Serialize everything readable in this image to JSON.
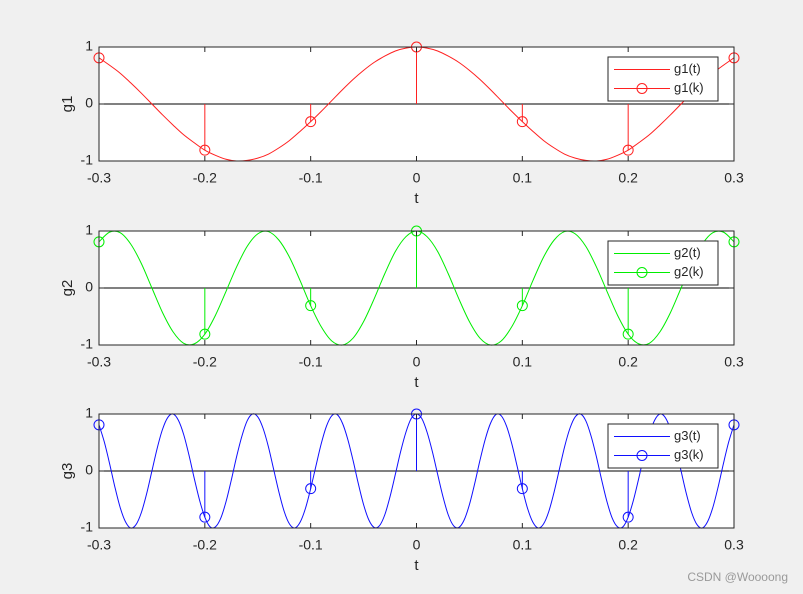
{
  "chart_data": [
    {
      "type": "line",
      "ylabel": "g1",
      "xlabel": "t",
      "xlim": [
        -0.3,
        0.3
      ],
      "ylim": [
        -1,
        1
      ],
      "xticks": [
        -0.3,
        -0.2,
        -0.1,
        0,
        0.1,
        0.2,
        0.3
      ],
      "yticks": [
        -1,
        0,
        1
      ],
      "legend": "northeast",
      "series": [
        {
          "name": "g1(t)",
          "type": "line",
          "color": "#ff2020",
          "x": [
            -0.3,
            -0.29,
            -0.28,
            -0.27,
            -0.26,
            -0.25,
            -0.24,
            -0.23,
            -0.22,
            -0.21,
            -0.2,
            -0.19,
            -0.18,
            -0.17,
            -0.16,
            -0.15,
            -0.14,
            -0.13,
            -0.12,
            -0.11,
            -0.1,
            -0.09,
            -0.08,
            -0.07,
            -0.06,
            -0.05,
            -0.04,
            -0.03,
            -0.02,
            -0.01,
            0,
            0.01,
            0.02,
            0.03,
            0.04,
            0.05,
            0.06,
            0.07,
            0.08,
            0.09,
            0.1,
            0.11,
            0.12,
            0.13,
            0.14,
            0.15,
            0.16,
            0.17,
            0.18,
            0.19,
            0.2,
            0.21,
            0.22,
            0.23,
            0.24,
            0.25,
            0.26,
            0.27,
            0.28,
            0.29,
            0.3
          ],
          "values": [
            0.81,
            0.68,
            0.54,
            0.37,
            0.19,
            0,
            -0.19,
            -0.37,
            -0.54,
            -0.68,
            -0.81,
            -0.9,
            -0.97,
            -1,
            -0.99,
            -0.95,
            -0.88,
            -0.77,
            -0.64,
            -0.48,
            -0.31,
            -0.13,
            0.06,
            0.25,
            0.43,
            0.59,
            0.73,
            0.84,
            0.93,
            0.98,
            1,
            0.98,
            0.93,
            0.84,
            0.73,
            0.59,
            0.43,
            0.25,
            0.06,
            -0.13,
            -0.31,
            -0.48,
            -0.64,
            -0.77,
            -0.88,
            -0.95,
            -0.99,
            -1,
            -0.97,
            -0.9,
            -0.81,
            -0.68,
            -0.54,
            -0.37,
            -0.19,
            0,
            0.19,
            0.37,
            0.54,
            0.68,
            0.81
          ]
        },
        {
          "name": "g1(k)",
          "type": "stem",
          "color": "#ff2020",
          "x": [
            -0.3,
            -0.2,
            -0.1,
            0,
            0.1,
            0.2,
            0.3
          ],
          "values": [
            0.81,
            -0.81,
            -0.31,
            1,
            -0.31,
            -0.81,
            0.81
          ]
        }
      ]
    },
    {
      "type": "line",
      "ylabel": "g2",
      "xlabel": "t",
      "xlim": [
        -0.3,
        0.3
      ],
      "ylim": [
        -1,
        1
      ],
      "xticks": [
        -0.3,
        -0.2,
        -0.1,
        0,
        0.1,
        0.2,
        0.3
      ],
      "yticks": [
        -1,
        0,
        1
      ],
      "legend": "northeast",
      "series": [
        {
          "name": "g2(t)",
          "type": "line",
          "color": "#00ee00",
          "x": [
            -0.3,
            -0.29,
            -0.28,
            -0.27,
            -0.26,
            -0.25,
            -0.24,
            -0.23,
            -0.22,
            -0.21,
            -0.2,
            -0.19,
            -0.18,
            -0.17,
            -0.16,
            -0.15,
            -0.14,
            -0.13,
            -0.12,
            -0.11,
            -0.1,
            -0.09,
            -0.08,
            -0.07,
            -0.06,
            -0.05,
            -0.04,
            -0.03,
            -0.02,
            -0.01,
            0,
            0.01,
            0.02,
            0.03,
            0.04,
            0.05,
            0.06,
            0.07,
            0.08,
            0.09,
            0.1,
            0.11,
            0.12,
            0.13,
            0.14,
            0.15,
            0.16,
            0.17,
            0.18,
            0.19,
            0.2,
            0.21,
            0.22,
            0.23,
            0.24,
            0.25,
            0.26,
            0.27,
            0.28,
            0.29,
            0.3
          ],
          "values": [
            0.81,
            0.98,
            0.97,
            0.77,
            0.43,
            0,
            -0.43,
            -0.77,
            -0.97,
            -0.98,
            -0.81,
            -0.48,
            -0.06,
            0.37,
            0.73,
            0.95,
            0.99,
            0.84,
            0.54,
            0.13,
            -0.31,
            -0.68,
            -0.93,
            -1,
            -0.88,
            -0.59,
            -0.19,
            0.25,
            0.64,
            0.9,
            1,
            0.9,
            0.64,
            0.25,
            -0.19,
            -0.59,
            -0.88,
            -1,
            -0.93,
            -0.68,
            -0.31,
            0.13,
            0.54,
            0.84,
            0.99,
            0.95,
            0.73,
            0.37,
            -0.06,
            -0.48,
            -0.81,
            -0.98,
            -0.97,
            -0.77,
            -0.43,
            0,
            0.43,
            0.77,
            0.97,
            0.98,
            0.81
          ]
        },
        {
          "name": "g2(k)",
          "type": "stem",
          "color": "#00ee00",
          "x": [
            -0.3,
            -0.2,
            -0.1,
            0,
            0.1,
            0.2,
            0.3
          ],
          "values": [
            0.81,
            -0.81,
            -0.31,
            1,
            -0.31,
            -0.81,
            0.81
          ]
        }
      ]
    },
    {
      "type": "line",
      "ylabel": "g3",
      "xlabel": "t",
      "xlim": [
        -0.3,
        0.3
      ],
      "ylim": [
        -1,
        1
      ],
      "xticks": [
        -0.3,
        -0.2,
        -0.1,
        0,
        0.1,
        0.2,
        0.3
      ],
      "yticks": [
        -1,
        0,
        1
      ],
      "legend": "northeast",
      "series": [
        {
          "name": "g3(t)",
          "type": "line",
          "color": "#1010ff",
          "x": [
            -0.3,
            -0.295,
            -0.29,
            -0.285,
            -0.28,
            -0.275,
            -0.27,
            -0.265,
            -0.26,
            -0.255,
            -0.25,
            -0.245,
            -0.24,
            -0.235,
            -0.23,
            -0.225,
            -0.22,
            -0.215,
            -0.21,
            -0.205,
            -0.2,
            -0.195,
            -0.19,
            -0.185,
            -0.18,
            -0.175,
            -0.17,
            -0.165,
            -0.16,
            -0.155,
            -0.15,
            -0.145,
            -0.14,
            -0.135,
            -0.13,
            -0.125,
            -0.12,
            -0.115,
            -0.11,
            -0.105,
            -0.1,
            -0.095,
            -0.09,
            -0.085,
            -0.08,
            -0.075,
            -0.07,
            -0.065,
            -0.06,
            -0.055,
            -0.05,
            -0.045,
            -0.04,
            -0.035,
            -0.03,
            -0.025,
            -0.02,
            -0.015,
            -0.01,
            -0.005,
            0,
            0.005,
            0.01,
            0.015,
            0.02,
            0.025,
            0.03,
            0.035,
            0.04,
            0.045,
            0.05,
            0.055,
            0.06,
            0.065,
            0.07,
            0.075,
            0.08,
            0.085,
            0.09,
            0.095,
            0.1,
            0.105,
            0.11,
            0.115,
            0.12,
            0.125,
            0.13,
            0.135,
            0.14,
            0.145,
            0.15,
            0.155,
            0.16,
            0.165,
            0.17,
            0.175,
            0.18,
            0.185,
            0.19,
            0.195,
            0.2,
            0.205,
            0.21,
            0.215,
            0.22,
            0.225,
            0.23,
            0.235,
            0.24,
            0.245,
            0.25,
            0.255,
            0.26,
            0.265,
            0.27,
            0.275,
            0.28,
            0.285,
            0.29,
            0.295,
            0.3
          ],
          "values": [
            0.81,
            0.51,
            0.13,
            -0.28,
            -0.64,
            -0.89,
            -1,
            -0.94,
            -0.73,
            -0.4,
            0,
            0.4,
            0.73,
            0.94,
            1,
            0.89,
            0.64,
            0.28,
            -0.13,
            -0.51,
            -0.81,
            -0.98,
            -0.98,
            -0.83,
            -0.54,
            -0.16,
            0.25,
            0.61,
            0.88,
            1,
            0.95,
            0.75,
            0.43,
            0.03,
            -0.37,
            -0.71,
            -0.93,
            -1,
            -0.9,
            -0.66,
            -0.31,
            0.09,
            0.48,
            0.79,
            0.97,
            0.99,
            0.84,
            0.56,
            0.19,
            -0.22,
            -0.59,
            -0.86,
            -0.99,
            -0.96,
            -0.77,
            -0.45,
            -0.06,
            0.34,
            0.68,
            0.92,
            1,
            0.92,
            0.68,
            0.34,
            -0.06,
            -0.45,
            -0.77,
            -0.96,
            -0.99,
            -0.86,
            -0.59,
            -0.22,
            0.19,
            0.56,
            0.84,
            0.99,
            0.97,
            0.79,
            0.48,
            0.09,
            -0.31,
            -0.66,
            -0.9,
            -1,
            -0.93,
            -0.71,
            -0.37,
            0.03,
            0.43,
            0.75,
            0.95,
            1,
            0.88,
            0.61,
            0.25,
            -0.16,
            -0.54,
            -0.83,
            -0.98,
            -0.98,
            -0.81,
            -0.51,
            -0.13,
            0.28,
            0.64,
            0.89,
            1,
            0.94,
            0.73,
            0.4,
            0,
            -0.4,
            -0.73,
            -0.94,
            -1,
            -0.89,
            -0.64,
            -0.28,
            0.13,
            0.51,
            0.81
          ]
        },
        {
          "name": "g3(k)",
          "type": "stem",
          "color": "#1010ff",
          "x": [
            -0.3,
            -0.2,
            -0.1,
            0,
            0.1,
            0.2,
            0.3
          ],
          "values": [
            0.81,
            -0.81,
            -0.31,
            1,
            -0.31,
            -0.81,
            0.81
          ]
        }
      ]
    }
  ],
  "watermark": "CSDN @Woooong"
}
